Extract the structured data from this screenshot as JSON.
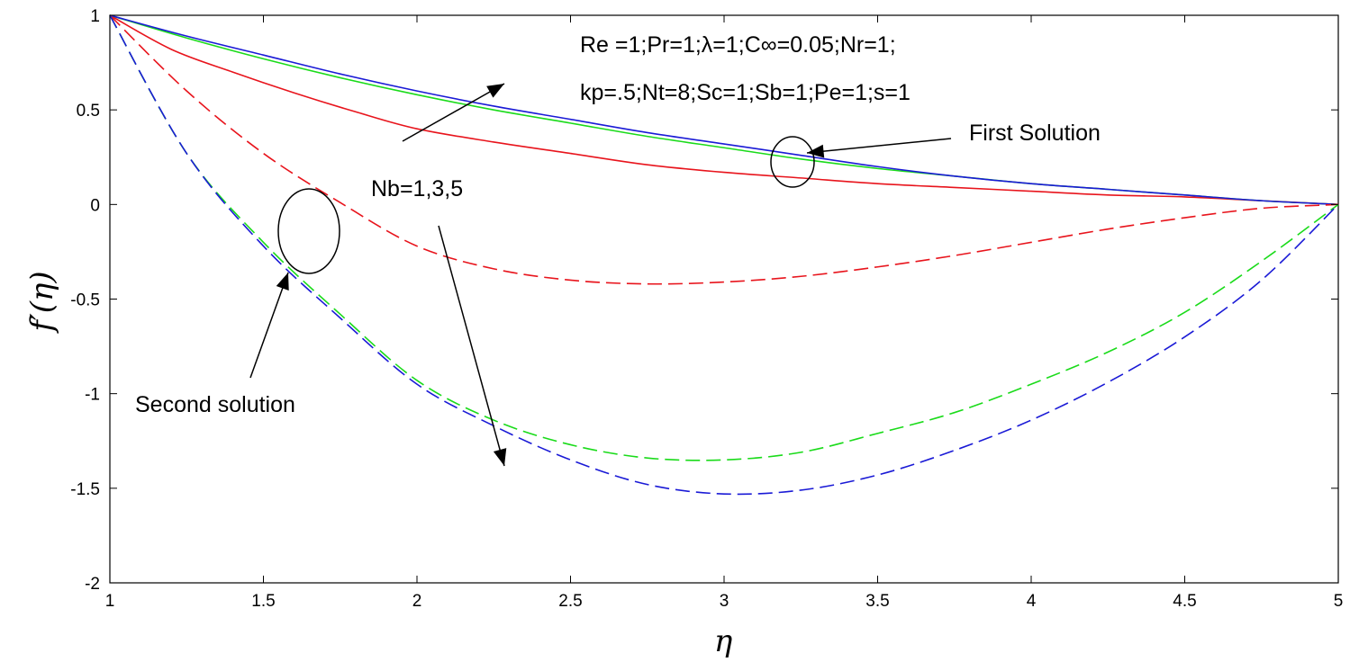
{
  "chart_data": {
    "type": "line",
    "title": "",
    "xlabel": "η",
    "ylabel": "f′(η)",
    "xlim": [
      1,
      5
    ],
    "ylim": [
      -2,
      1
    ],
    "x_ticks": [
      "1",
      "1.5",
      "2",
      "2.5",
      "3",
      "3.5",
      "4",
      "4.5",
      "5"
    ],
    "y_ticks": [
      "1",
      "0.5",
      "0",
      "-0.5",
      "-1",
      "-1.5",
      "-2"
    ],
    "grid": false,
    "legend": "none",
    "colors": {
      "red": "#e8141c",
      "green": "#1adb1a",
      "blue": "#1a1ad6"
    },
    "annotations": {
      "params_line1": "Re =1;Pr=1;λ=1;C∞=0.05;Nr=1;",
      "params_line2": "kp=.5;Nt=8;Sc=1;Sb=1;Pe=1;s=1",
      "first_solution": "First Solution",
      "second_solution": "Second solution",
      "nb_label": "Nb=1,3,5"
    },
    "series": [
      {
        "group": "first",
        "color": "red",
        "style": "solid",
        "x": [
          1,
          1.2,
          1.4,
          1.6,
          1.8,
          2,
          2.25,
          2.5,
          2.75,
          3,
          3.25,
          3.5,
          3.75,
          4,
          4.25,
          4.5,
          4.75,
          5
        ],
        "y": [
          1,
          0.82,
          0.7,
          0.59,
          0.49,
          0.4,
          0.33,
          0.27,
          0.21,
          0.17,
          0.14,
          0.11,
          0.09,
          0.07,
          0.05,
          0.04,
          0.02,
          0
        ]
      },
      {
        "group": "first",
        "color": "green",
        "style": "solid",
        "x": [
          1,
          1.25,
          1.5,
          1.75,
          2,
          2.25,
          2.5,
          2.75,
          3,
          3.25,
          3.5,
          3.75,
          4,
          4.25,
          4.5,
          4.75,
          5
        ],
        "y": [
          1,
          0.88,
          0.77,
          0.67,
          0.58,
          0.5,
          0.43,
          0.36,
          0.3,
          0.24,
          0.19,
          0.15,
          0.11,
          0.08,
          0.05,
          0.02,
          0
        ]
      },
      {
        "group": "first",
        "color": "blue",
        "style": "solid",
        "x": [
          1,
          1.25,
          1.5,
          1.75,
          2,
          2.25,
          2.5,
          2.75,
          3,
          3.25,
          3.5,
          3.75,
          4,
          4.25,
          4.5,
          4.75,
          5
        ],
        "y": [
          1,
          0.89,
          0.79,
          0.69,
          0.6,
          0.52,
          0.45,
          0.38,
          0.32,
          0.26,
          0.2,
          0.15,
          0.11,
          0.08,
          0.05,
          0.02,
          0
        ]
      },
      {
        "group": "second",
        "color": "red",
        "style": "dashed",
        "x": [
          1,
          1.25,
          1.5,
          1.75,
          2,
          2.25,
          2.5,
          2.75,
          3,
          3.25,
          3.5,
          3.75,
          4,
          4.25,
          4.5,
          4.75,
          5
        ],
        "y": [
          1,
          0.6,
          0.27,
          0.01,
          -0.22,
          -0.34,
          -0.4,
          -0.42,
          -0.41,
          -0.38,
          -0.33,
          -0.27,
          -0.2,
          -0.13,
          -0.07,
          -0.02,
          0
        ]
      },
      {
        "group": "second",
        "color": "green",
        "style": "dashed",
        "x": [
          1,
          1.25,
          1.5,
          1.75,
          2,
          2.25,
          2.5,
          2.75,
          3,
          3.25,
          3.5,
          3.75,
          4,
          4.25,
          4.5,
          4.75,
          5
        ],
        "y": [
          1,
          0.27,
          -0.2,
          -0.58,
          -0.93,
          -1.14,
          -1.27,
          -1.34,
          -1.35,
          -1.31,
          -1.21,
          -1.1,
          -0.95,
          -0.78,
          -0.57,
          -0.3,
          0
        ]
      },
      {
        "group": "second",
        "color": "blue",
        "style": "dashed",
        "x": [
          1,
          1.25,
          1.5,
          1.75,
          2,
          2.25,
          2.5,
          2.75,
          3,
          3.25,
          3.5,
          3.75,
          4,
          4.25,
          4.5,
          4.75,
          5
        ],
        "y": [
          1,
          0.27,
          -0.22,
          -0.6,
          -0.95,
          -1.17,
          -1.35,
          -1.48,
          -1.53,
          -1.51,
          -1.43,
          -1.3,
          -1.14,
          -0.94,
          -0.7,
          -0.4,
          0
        ]
      }
    ]
  }
}
